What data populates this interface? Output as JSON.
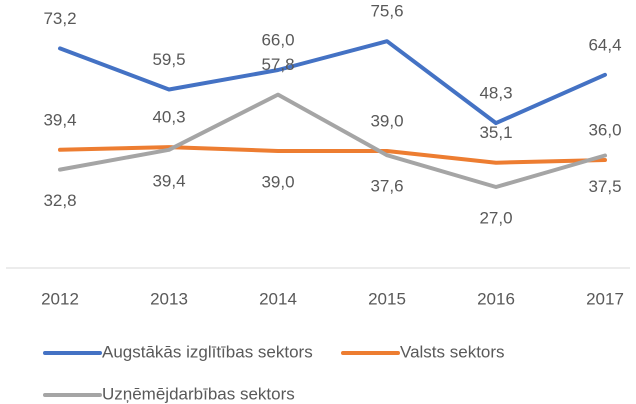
{
  "chart_data": {
    "type": "line",
    "categories": [
      "2012",
      "2013",
      "2014",
      "2015",
      "2016",
      "2017"
    ],
    "ylim": [
      0,
      90
    ],
    "legend": "bottom",
    "series": [
      {
        "name": "Augstākās izglītības sektors",
        "color": "#4472c4",
        "values": [
          73.2,
          59.5,
          66.0,
          75.6,
          48.3,
          64.4
        ],
        "value_labels": [
          "73,2",
          "59,5",
          "66,0",
          "75,6",
          "48,3",
          "64,4"
        ],
        "label_position": [
          "above",
          "above",
          "above",
          "above",
          "above",
          "above"
        ]
      },
      {
        "name": "Valsts sektors",
        "color": "#ed7d31",
        "values": [
          39.4,
          40.3,
          39.0,
          39.0,
          35.1,
          36.0
        ],
        "value_labels": [
          "39,4",
          "40,3",
          "39,0",
          "39,0",
          "35,1",
          "36,0"
        ],
        "label_position": [
          "above",
          "above",
          "below",
          "above",
          "above",
          "above"
        ]
      },
      {
        "name": "Uzņēmējdarbības sektors",
        "color": "#a5a5a5",
        "values": [
          32.8,
          39.4,
          57.8,
          37.6,
          27.0,
          37.5
        ],
        "value_labels": [
          "32,8",
          "39,4",
          "57,8",
          "37,6",
          "27,0",
          "37,5"
        ],
        "label_position": [
          "below",
          "below",
          "above",
          "below",
          "below",
          "below"
        ]
      }
    ]
  }
}
